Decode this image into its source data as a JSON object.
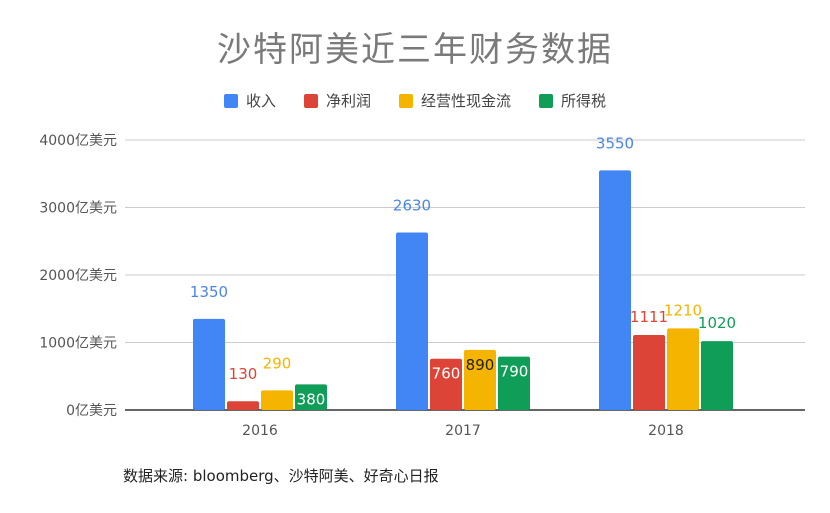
{
  "chart_data": {
    "type": "bar",
    "title": "沙特阿美近三年财务数据",
    "categories": [
      "2016",
      "2017",
      "2018"
    ],
    "series": [
      {
        "name": "收入",
        "values": [
          1350,
          2630,
          3550
        ],
        "labels": [
          "1350",
          "2630",
          "3550"
        ],
        "color": "#4285f4",
        "label_color": "#4a86e8"
      },
      {
        "name": "净利润",
        "values": [
          130,
          760,
          1111
        ],
        "labels": [
          "130",
          "760",
          "1111"
        ],
        "color": "#db4437",
        "label_color": "#db4437"
      },
      {
        "name": "经营性现金流",
        "values": [
          290,
          890,
          1210
        ],
        "labels": [
          "290",
          "890",
          "1210"
        ],
        "color": "#f4b400",
        "label_color": "#f4b400"
      },
      {
        "name": "所得税",
        "values": [
          380,
          790,
          1020
        ],
        "labels": [
          "380",
          "790",
          "1020"
        ],
        "color": "#0f9d58",
        "label_color": "#0f9d58"
      }
    ],
    "ylim": [
      0,
      4000
    ],
    "yticks": [
      "0亿美元",
      "1000亿美元",
      "2000亿美元",
      "3000亿美元",
      "4000亿美元"
    ],
    "ytick_values": [
      0,
      1000,
      2000,
      3000,
      4000
    ],
    "grid": true,
    "legend_position": "top-center"
  },
  "source_note": "数据来源: bloomberg、沙特阿美、好奇心日报"
}
